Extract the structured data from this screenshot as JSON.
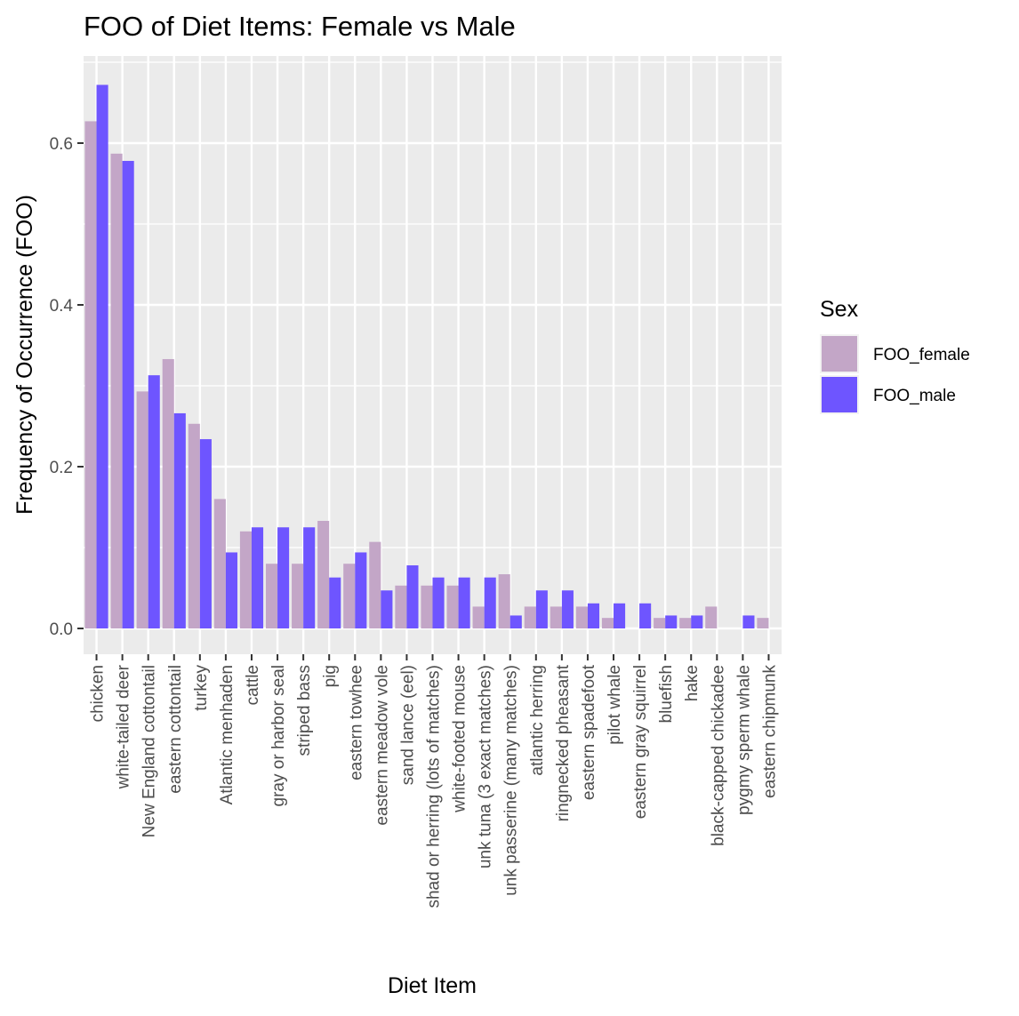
{
  "chart_data": {
    "type": "bar",
    "title": "FOO of Diet Items: Female vs Male",
    "xlabel": "Diet Item",
    "ylabel": "Frequency of Occurrence (FOO)",
    "ylim": [
      -0.03,
      0.7
    ],
    "yticks": [
      0.0,
      0.2,
      0.4,
      0.6
    ],
    "ytick_labels": [
      "0.0",
      "0.2",
      "0.4",
      "0.6"
    ],
    "grid": true,
    "legend": {
      "title": "Sex",
      "position": "right"
    },
    "categories": [
      "chicken",
      "white-tailed deer",
      "New England cottontail",
      "eastern cottontail",
      "turkey",
      "Atlantic menhaden",
      "cattle",
      "gray or harbor seal",
      "striped bass",
      "pig",
      "eastern towhee",
      "eastern meadow vole",
      "sand lance (eel)",
      "shad or herring (lots of matches)",
      "white-footed mouse",
      "unk tuna (3 exact matches)",
      "unk passerine (many matches)",
      "atlantic herring",
      "ringnecked pheasant",
      "eastern spadefoot",
      "pilot whale",
      "eastern gray squirrel",
      "bluefish",
      "hake",
      "black-capped chickadee",
      "pygmy sperm whale",
      "eastern chipmunk"
    ],
    "series": [
      {
        "name": "FOO_female",
        "color": "#c3a6c7",
        "values": [
          0.627,
          0.587,
          0.293,
          0.333,
          0.253,
          0.16,
          0.12,
          0.08,
          0.08,
          0.133,
          0.08,
          0.107,
          0.053,
          0.053,
          0.053,
          0.027,
          0.067,
          0.027,
          0.027,
          0.027,
          0.013,
          0.0,
          0.013,
          0.013,
          0.027,
          0.0,
          0.013
        ]
      },
      {
        "name": "FOO_male",
        "color": "#6e55ff",
        "values": [
          0.672,
          0.578,
          0.313,
          0.266,
          0.234,
          0.094,
          0.125,
          0.125,
          0.125,
          0.063,
          0.094,
          0.047,
          0.078,
          0.063,
          0.063,
          0.063,
          0.016,
          0.047,
          0.047,
          0.031,
          0.031,
          0.031,
          0.016,
          0.016,
          0.0,
          0.016,
          0.0
        ]
      }
    ]
  }
}
